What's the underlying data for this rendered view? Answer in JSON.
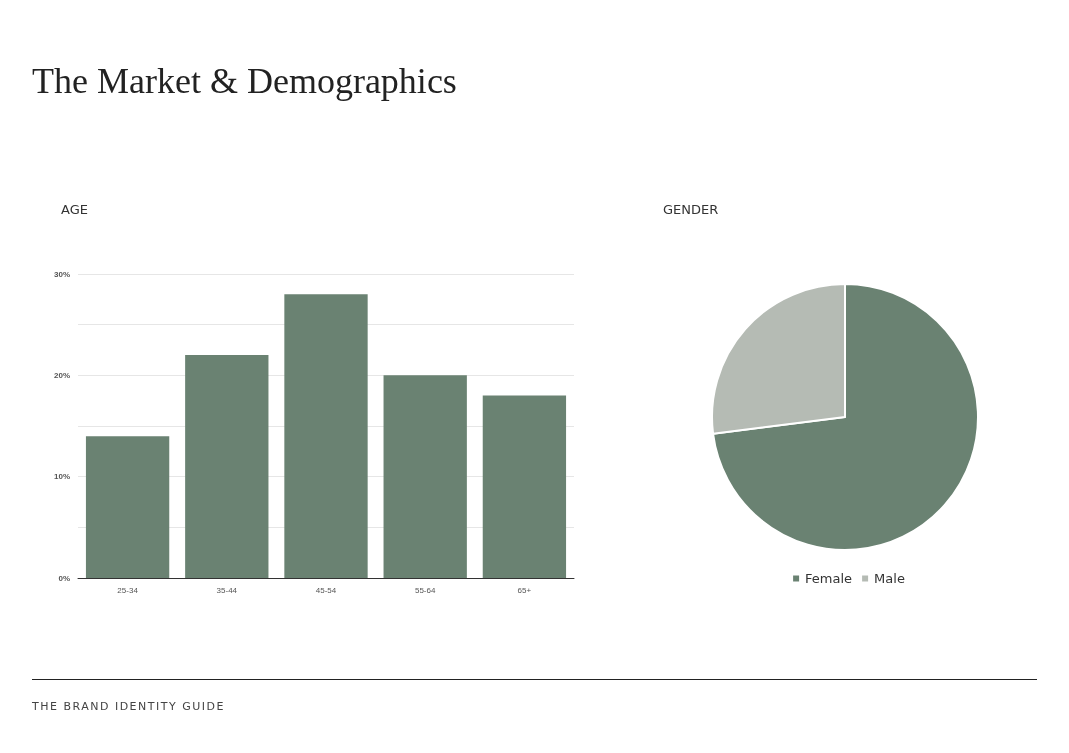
{
  "chart_data": [
    {
      "type": "bar",
      "title": "The Market & Demographics",
      "subtitle": "AGE",
      "annotations": [
        "THE BRAND IDENTITY GUIDE"
      ],
      "categories": [
        "25-34",
        "35-44",
        "45-54",
        "55-64",
        "65+"
      ],
      "values": [
        14,
        22,
        28,
        20,
        18
      ],
      "color": "#6a8272",
      "ylim": [
        0,
        30
      ],
      "yticks": [
        {
          "value": 0,
          "label": "0%"
        },
        {
          "value": 5,
          "label": null
        },
        {
          "value": 10,
          "label": "10%"
        },
        {
          "value": 15,
          "label": null
        },
        {
          "value": 20,
          "label": "20%"
        },
        {
          "value": 25,
          "label": null
        },
        {
          "value": 30,
          "label": "30%"
        }
      ],
      "grid": "y",
      "legend": false
    },
    {
      "type": "pie",
      "title": "GENDER",
      "categories": [
        "Female",
        "Male"
      ],
      "values": [
        73,
        27
      ],
      "colors": [
        "#6a8272",
        "#b5bbb4"
      ],
      "legend": "bottom"
    }
  ]
}
